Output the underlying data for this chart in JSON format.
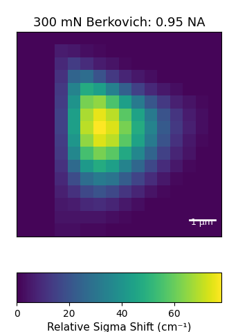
{
  "title": "300 mN Berkovich: 0.95 NA",
  "colormap": "viridis",
  "vmin": 0,
  "vmax": 78,
  "colorbar_ticks": [
    0,
    20,
    40,
    60
  ],
  "colorbar_label": "Relative Sigma Shift (cm⁻¹)",
  "scalebar_label": "1 μm",
  "data": [
    [
      1,
      1,
      1,
      1,
      1,
      1,
      1,
      1,
      1,
      1,
      1,
      1,
      1,
      1,
      1,
      1
    ],
    [
      1,
      1,
      1,
      6,
      5,
      3,
      2,
      1,
      1,
      1,
      1,
      1,
      1,
      1,
      1,
      1
    ],
    [
      1,
      1,
      1,
      9,
      14,
      10,
      6,
      4,
      2,
      1,
      1,
      1,
      1,
      1,
      1,
      1
    ],
    [
      1,
      1,
      1,
      11,
      25,
      28,
      20,
      13,
      8,
      5,
      3,
      1,
      1,
      1,
      1,
      1
    ],
    [
      1,
      1,
      1,
      13,
      35,
      48,
      44,
      34,
      24,
      15,
      9,
      5,
      3,
      1,
      1,
      1
    ],
    [
      1,
      1,
      1,
      14,
      40,
      62,
      65,
      56,
      44,
      32,
      21,
      13,
      7,
      4,
      2,
      1
    ],
    [
      1,
      1,
      1,
      15,
      44,
      68,
      75,
      70,
      58,
      45,
      32,
      20,
      12,
      6,
      3,
      1
    ],
    [
      1,
      1,
      1,
      15,
      44,
      70,
      78,
      74,
      62,
      48,
      35,
      22,
      13,
      7,
      3,
      1
    ],
    [
      1,
      1,
      1,
      14,
      41,
      65,
      74,
      70,
      58,
      45,
      32,
      20,
      11,
      5,
      2,
      1
    ],
    [
      1,
      1,
      1,
      13,
      36,
      55,
      62,
      58,
      47,
      36,
      25,
      15,
      8,
      4,
      1,
      1
    ],
    [
      1,
      1,
      1,
      11,
      27,
      42,
      48,
      44,
      35,
      26,
      17,
      10,
      5,
      2,
      1,
      1
    ],
    [
      1,
      1,
      1,
      9,
      18,
      28,
      32,
      30,
      23,
      16,
      10,
      5,
      2,
      1,
      1,
      1
    ],
    [
      1,
      1,
      1,
      7,
      11,
      17,
      20,
      17,
      12,
      8,
      4,
      2,
      1,
      1,
      1,
      1
    ],
    [
      1,
      1,
      1,
      5,
      6,
      9,
      10,
      8,
      5,
      3,
      1,
      1,
      1,
      1,
      1,
      1
    ],
    [
      1,
      1,
      1,
      4,
      4,
      4,
      4,
      3,
      2,
      1,
      1,
      1,
      1,
      1,
      1,
      1
    ],
    [
      1,
      1,
      1,
      3,
      3,
      2,
      2,
      1,
      1,
      1,
      1,
      1,
      1,
      1,
      1,
      1
    ]
  ]
}
